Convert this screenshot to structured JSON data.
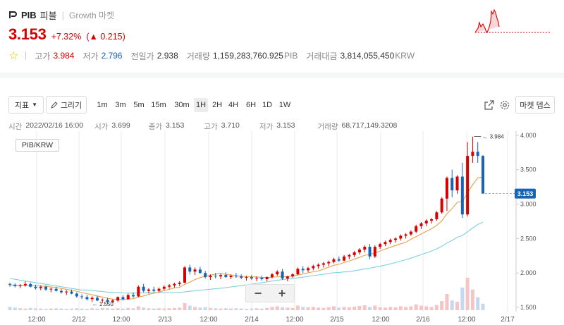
{
  "header": {
    "symbol": "PIB",
    "korean_name": "피블",
    "market": "Growth 마켓",
    "price": "3.153",
    "change_pct": "+7.32%",
    "change_abs": "▲ 0.215",
    "stats": [
      {
        "label": "고가",
        "value": "3.984",
        "unit": "",
        "tone": "red"
      },
      {
        "label": "저가",
        "value": "2.796",
        "unit": "",
        "tone": "blue"
      },
      {
        "label": "전일가",
        "value": "2.938",
        "unit": "",
        "tone": "plain"
      },
      {
        "label": "거래량",
        "value": "1,159,283,760.925",
        "unit": "PIB",
        "tone": "plain"
      },
      {
        "label": "거래대금",
        "value": "3,814,055,450",
        "unit": "KRW",
        "tone": "plain"
      }
    ]
  },
  "toolbar": {
    "indicator_label": "지표",
    "draw_label": "그리기",
    "timeframes": [
      "1m",
      "3m",
      "5m",
      "15m",
      "30m",
      "1H",
      "2H",
      "4H",
      "6H",
      "1D",
      "1W"
    ],
    "active_timeframe": "1H",
    "depth_label": "마켓 뎁스"
  },
  "info": {
    "time_label": "시간",
    "time_value": "2022/02/16 16:00",
    "open_label": "시가",
    "open_value": "3.699",
    "close_label": "종가",
    "close_value": "3.153",
    "high_label": "고가",
    "high_value": "3.710",
    "low_label": "저가",
    "low_value": "3.153",
    "volume_label": "거래량",
    "volume_value": "68,717,149.3208"
  },
  "chart_data": {
    "type": "candlestick",
    "pair": "PIB/KRW",
    "y_ticks": [
      "4.000",
      "3.500",
      "3.000",
      "2.500",
      "2.000",
      "1.500"
    ],
    "ylim": [
      1.48,
      4.06
    ],
    "x_ticks": [
      "12:00",
      "2/12",
      "12:00",
      "2/13",
      "12:00",
      "2/14",
      "12:00",
      "2/15",
      "12:00",
      "2/16",
      "12:00",
      "2/17"
    ],
    "high_marker": "3.984",
    "low_marker": "1.550",
    "last_price": "3.153",
    "colors": {
      "up": "#d60000",
      "down": "#1763b6",
      "ma_short": "#e8a04c",
      "ma_long": "#7fcfe0",
      "last_tag": "#1763b6"
    },
    "candles": [
      [
        1.84,
        1.86,
        1.8,
        1.83
      ],
      [
        1.83,
        1.85,
        1.79,
        1.81
      ],
      [
        1.81,
        1.84,
        1.78,
        1.82
      ],
      [
        1.82,
        1.88,
        1.8,
        1.84
      ],
      [
        1.84,
        1.86,
        1.79,
        1.8
      ],
      [
        1.8,
        1.83,
        1.76,
        1.78
      ],
      [
        1.78,
        1.82,
        1.75,
        1.8
      ],
      [
        1.8,
        1.82,
        1.74,
        1.76
      ],
      [
        1.76,
        1.79,
        1.72,
        1.77
      ],
      [
        1.77,
        1.8,
        1.73,
        1.74
      ],
      [
        1.74,
        1.77,
        1.7,
        1.72
      ],
      [
        1.72,
        1.75,
        1.68,
        1.73
      ],
      [
        1.73,
        1.76,
        1.69,
        1.7
      ],
      [
        1.7,
        1.72,
        1.64,
        1.66
      ],
      [
        1.66,
        1.69,
        1.62,
        1.65
      ],
      [
        1.65,
        1.68,
        1.6,
        1.62
      ],
      [
        1.62,
        1.66,
        1.58,
        1.64
      ],
      [
        1.64,
        1.67,
        1.59,
        1.6
      ],
      [
        1.6,
        1.63,
        1.56,
        1.61
      ],
      [
        1.61,
        1.64,
        1.55,
        1.58
      ],
      [
        1.58,
        1.62,
        1.56,
        1.6
      ],
      [
        1.6,
        1.66,
        1.58,
        1.65
      ],
      [
        1.65,
        1.68,
        1.6,
        1.62
      ],
      [
        1.62,
        1.7,
        1.61,
        1.68
      ],
      [
        1.68,
        1.72,
        1.64,
        1.66
      ],
      [
        1.66,
        1.82,
        1.65,
        1.8
      ],
      [
        1.8,
        1.84,
        1.72,
        1.74
      ],
      [
        1.74,
        1.78,
        1.7,
        1.76
      ],
      [
        1.76,
        1.8,
        1.72,
        1.74
      ],
      [
        1.74,
        1.79,
        1.72,
        1.77
      ],
      [
        1.77,
        1.82,
        1.75,
        1.8
      ],
      [
        1.8,
        1.84,
        1.77,
        1.82
      ],
      [
        1.82,
        1.86,
        1.79,
        1.84
      ],
      [
        1.84,
        1.88,
        1.81,
        1.86
      ],
      [
        1.86,
        2.1,
        1.85,
        2.08
      ],
      [
        2.08,
        2.12,
        1.98,
        2.02
      ],
      [
        2.02,
        2.08,
        1.97,
        2.05
      ],
      [
        2.05,
        2.09,
        1.99,
        2.0
      ],
      [
        2.0,
        2.03,
        1.92,
        1.94
      ],
      [
        1.94,
        1.98,
        1.9,
        1.96
      ],
      [
        1.96,
        2.0,
        1.92,
        1.95
      ],
      [
        1.95,
        1.99,
        1.91,
        1.97
      ],
      [
        1.97,
        2.01,
        1.93,
        1.94
      ],
      [
        1.94,
        1.98,
        1.91,
        1.96
      ],
      [
        1.96,
        2.0,
        1.93,
        1.95
      ],
      [
        1.95,
        1.98,
        1.91,
        1.93
      ],
      [
        1.93,
        1.96,
        1.89,
        1.94
      ],
      [
        1.94,
        1.97,
        1.9,
        1.92
      ],
      [
        1.92,
        1.95,
        1.88,
        1.93
      ],
      [
        1.93,
        1.96,
        1.89,
        1.91
      ],
      [
        1.91,
        1.95,
        1.88,
        1.94
      ],
      [
        1.94,
        2.0,
        1.92,
        1.98
      ],
      [
        1.98,
        2.04,
        1.96,
        2.02
      ],
      [
        2.02,
        2.06,
        1.9,
        1.92
      ],
      [
        1.92,
        1.96,
        1.88,
        1.95
      ],
      [
        1.95,
        2.0,
        1.93,
        1.98
      ],
      [
        1.98,
        2.08,
        1.97,
        2.06
      ],
      [
        2.06,
        2.1,
        2.0,
        2.04
      ],
      [
        2.04,
        2.09,
        2.01,
        2.07
      ],
      [
        2.07,
        2.12,
        2.04,
        2.1
      ],
      [
        2.1,
        2.14,
        2.06,
        2.12
      ],
      [
        2.12,
        2.16,
        2.08,
        2.14
      ],
      [
        2.14,
        2.18,
        2.1,
        2.16
      ],
      [
        2.16,
        2.22,
        2.14,
        2.2
      ],
      [
        2.2,
        2.24,
        2.16,
        2.18
      ],
      [
        2.18,
        2.26,
        2.17,
        2.24
      ],
      [
        2.24,
        2.28,
        2.2,
        2.26
      ],
      [
        2.26,
        2.32,
        2.23,
        2.3
      ],
      [
        2.3,
        2.36,
        2.27,
        2.34
      ],
      [
        2.34,
        2.4,
        2.3,
        2.38
      ],
      [
        2.38,
        2.42,
        2.2,
        2.24
      ],
      [
        2.24,
        2.4,
        2.22,
        2.38
      ],
      [
        2.38,
        2.44,
        2.35,
        2.42
      ],
      [
        2.42,
        2.47,
        2.39,
        2.45
      ],
      [
        2.45,
        2.5,
        2.42,
        2.48
      ],
      [
        2.48,
        2.52,
        2.44,
        2.5
      ],
      [
        2.5,
        2.56,
        2.47,
        2.54
      ],
      [
        2.54,
        2.58,
        2.5,
        2.56
      ],
      [
        2.56,
        2.62,
        2.54,
        2.6
      ],
      [
        2.6,
        2.7,
        2.58,
        2.68
      ],
      [
        2.68,
        2.74,
        2.64,
        2.72
      ],
      [
        2.72,
        2.78,
        2.68,
        2.76
      ],
      [
        2.76,
        2.8,
        2.72,
        2.78
      ],
      [
        2.78,
        2.9,
        2.76,
        2.88
      ],
      [
        2.88,
        3.1,
        2.86,
        3.08
      ],
      [
        3.08,
        3.4,
        2.9,
        3.38
      ],
      [
        3.38,
        3.5,
        3.1,
        3.2
      ],
      [
        3.2,
        3.42,
        3.15,
        3.4
      ],
      [
        3.4,
        3.6,
        2.8,
        2.85
      ],
      [
        2.85,
        3.9,
        2.82,
        3.7
      ],
      [
        3.7,
        3.98,
        3.6,
        3.76
      ],
      [
        3.76,
        3.9,
        3.6,
        3.7
      ],
      [
        3.7,
        3.71,
        3.15,
        3.153
      ]
    ],
    "volumes": [
      0.1,
      0.08,
      0.06,
      0.05,
      0.07,
      0.06,
      0.05,
      0.04,
      0.05,
      0.06,
      0.05,
      0.04,
      0.05,
      0.06,
      0.05,
      0.04,
      0.06,
      0.05,
      0.07,
      0.06,
      0.05,
      0.06,
      0.05,
      0.07,
      0.06,
      0.12,
      0.08,
      0.06,
      0.05,
      0.06,
      0.05,
      0.06,
      0.07,
      0.08,
      0.22,
      0.14,
      0.1,
      0.08,
      0.09,
      0.07,
      0.06,
      0.05,
      0.06,
      0.05,
      0.06,
      0.05,
      0.04,
      0.05,
      0.06,
      0.05,
      0.07,
      0.1,
      0.12,
      0.09,
      0.08,
      0.07,
      0.14,
      0.1,
      0.09,
      0.1,
      0.08,
      0.07,
      0.09,
      0.12,
      0.08,
      0.1,
      0.09,
      0.11,
      0.13,
      0.15,
      0.1,
      0.14,
      0.09,
      0.08,
      0.1,
      0.09,
      0.12,
      0.1,
      0.12,
      0.18,
      0.14,
      0.12,
      0.1,
      0.16,
      0.28,
      0.5,
      0.3,
      0.26,
      0.7,
      1.0,
      0.64,
      0.4,
      0.2
    ]
  }
}
